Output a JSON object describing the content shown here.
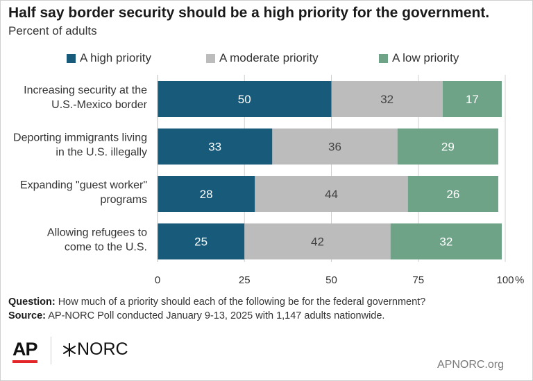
{
  "title": "Half say border security should be a high priority for the government.",
  "subtitle": "Percent of adults",
  "colors": {
    "high": "#175a7a",
    "moderate": "#bcbcbc",
    "low": "#6ea387",
    "grid": "#cfcfcf",
    "bar_text_dark": "#ffffff",
    "bar_text_light": "#444444"
  },
  "legend": [
    {
      "label": "A high priority",
      "color": "#175a7a"
    },
    {
      "label": "A moderate priority",
      "color": "#bcbcbc"
    },
    {
      "label": "A low priority",
      "color": "#6ea387"
    }
  ],
  "chart_data": {
    "type": "bar",
    "orientation": "horizontal",
    "stacked": true,
    "categories": [
      [
        "Increasing security at the",
        "U.S.-Mexico border"
      ],
      [
        "Deporting immigrants living",
        "in the U.S. illegally"
      ],
      [
        "Expanding \"guest worker\"",
        "programs"
      ],
      [
        "Allowing refugees to",
        "come to the U.S."
      ]
    ],
    "series": [
      {
        "name": "A high priority",
        "values": [
          50,
          33,
          28,
          25
        ]
      },
      {
        "name": "A moderate priority",
        "values": [
          32,
          36,
          44,
          42
        ]
      },
      {
        "name": "A low priority",
        "values": [
          17,
          29,
          26,
          32
        ]
      }
    ],
    "xlim": [
      0,
      100
    ],
    "xticks": [
      "0",
      "25",
      "50",
      "75",
      "100"
    ],
    "x_unit": "%",
    "grid": true,
    "legend_position": "top"
  },
  "footer": {
    "question_label": "Question:",
    "question_text": "How much of a priority should each of the following be for the federal government?",
    "source_label": "Source:",
    "source_text": "AP-NORC Poll conducted January 9-13, 2025 with 1,147 adults nationwide.",
    "ap_logo": "AP",
    "norc_logo": "NORC",
    "site": "APNORC.org"
  }
}
